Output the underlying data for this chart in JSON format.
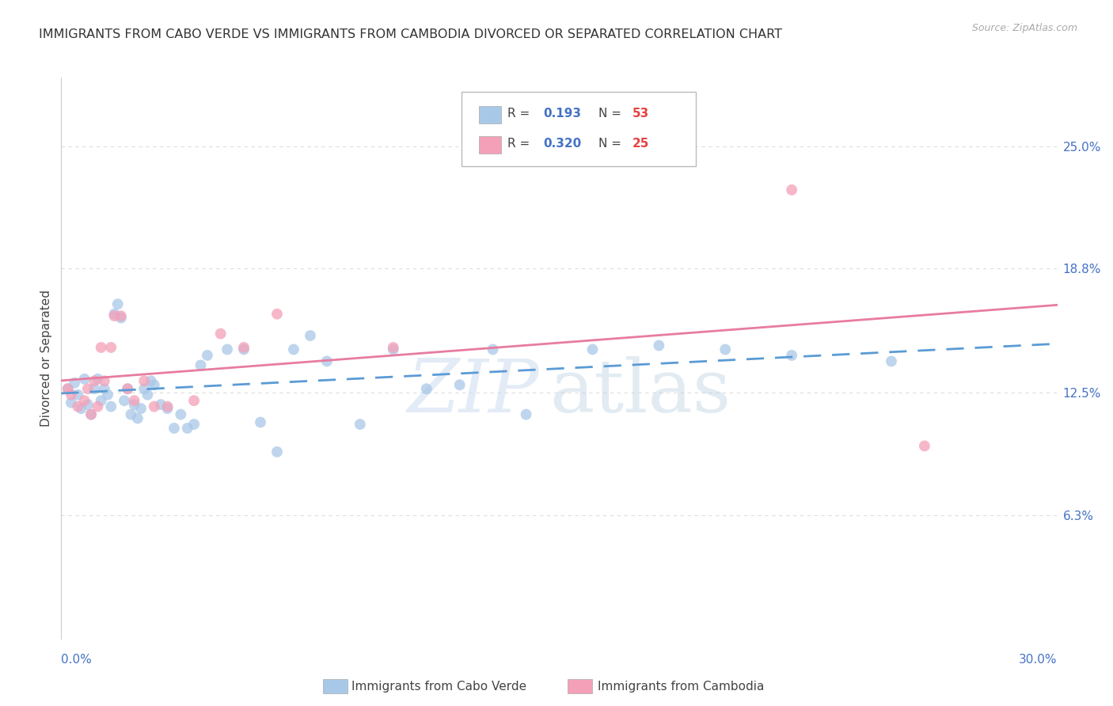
{
  "title": "IMMIGRANTS FROM CABO VERDE VS IMMIGRANTS FROM CAMBODIA DIVORCED OR SEPARATED CORRELATION CHART",
  "source": "Source: ZipAtlas.com",
  "ylabel": "Divorced or Separated",
  "ytick_values": [
    0.063,
    0.125,
    0.188,
    0.25
  ],
  "ytick_labels": [
    "6.3%",
    "12.5%",
    "18.8%",
    "25.0%"
  ],
  "xlim": [
    0.0,
    0.3
  ],
  "ylim": [
    0.0,
    0.285
  ],
  "cabo_verde_color": "#a8c8e8",
  "cambodia_color": "#f4a0b8",
  "cabo_verde_line_color": "#5b9bd5",
  "cambodia_line_color": "#e87ca0",
  "grid_color": "#dddddd",
  "background_color": "#ffffff",
  "watermark_zip_color": "#d0e0f0",
  "watermark_atlas_color": "#c8d8e8",
  "cv_R": "0.193",
  "cv_N": "53",
  "cam_R": "0.320",
  "cam_N": "25",
  "legend_R_color": "#4472c4",
  "legend_N_color": "#e84040",
  "cv_x": [
    0.002,
    0.003,
    0.004,
    0.005,
    0.006,
    0.007,
    0.008,
    0.009,
    0.01,
    0.011,
    0.012,
    0.013,
    0.014,
    0.015,
    0.016,
    0.017,
    0.018,
    0.019,
    0.02,
    0.021,
    0.022,
    0.023,
    0.024,
    0.025,
    0.026,
    0.027,
    0.028,
    0.03,
    0.032,
    0.034,
    0.036,
    0.038,
    0.04,
    0.042,
    0.044,
    0.05,
    0.055,
    0.06,
    0.065,
    0.07,
    0.075,
    0.08,
    0.09,
    0.1,
    0.11,
    0.12,
    0.13,
    0.14,
    0.16,
    0.18,
    0.2,
    0.22,
    0.25
  ],
  "cv_y": [
    0.127,
    0.12,
    0.13,
    0.124,
    0.117,
    0.132,
    0.119,
    0.114,
    0.127,
    0.132,
    0.121,
    0.127,
    0.124,
    0.118,
    0.165,
    0.17,
    0.163,
    0.121,
    0.127,
    0.114,
    0.119,
    0.112,
    0.117,
    0.127,
    0.124,
    0.131,
    0.129,
    0.119,
    0.117,
    0.107,
    0.114,
    0.107,
    0.109,
    0.139,
    0.144,
    0.147,
    0.147,
    0.11,
    0.095,
    0.147,
    0.154,
    0.141,
    0.109,
    0.147,
    0.127,
    0.129,
    0.147,
    0.114,
    0.147,
    0.149,
    0.147,
    0.144,
    0.141
  ],
  "cam_x": [
    0.002,
    0.003,
    0.005,
    0.007,
    0.008,
    0.009,
    0.01,
    0.011,
    0.012,
    0.013,
    0.015,
    0.016,
    0.018,
    0.02,
    0.022,
    0.025,
    0.028,
    0.032,
    0.04,
    0.048,
    0.055,
    0.065,
    0.1,
    0.22,
    0.26
  ],
  "cam_y": [
    0.127,
    0.124,
    0.118,
    0.121,
    0.127,
    0.114,
    0.131,
    0.118,
    0.148,
    0.131,
    0.148,
    0.164,
    0.164,
    0.127,
    0.121,
    0.131,
    0.118,
    0.118,
    0.121,
    0.155,
    0.148,
    0.165,
    0.148,
    0.228,
    0.098
  ]
}
